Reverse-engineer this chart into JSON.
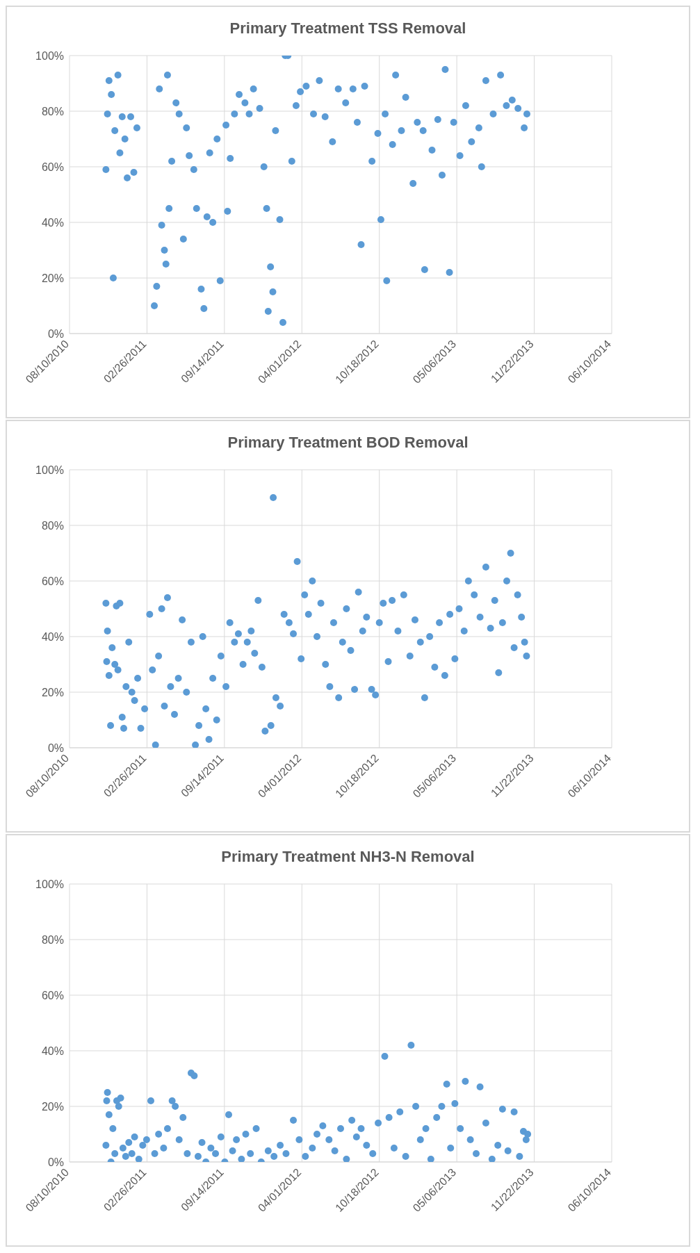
{
  "chart_data": [
    {
      "type": "scatter",
      "title": "Primary Treatment TSS Removal",
      "color": "#5b9bd5",
      "marker": "circle",
      "grid": true,
      "xlim": [
        "2010-08-10",
        "2014-06-10"
      ],
      "xticks": [
        {
          "value": "2010-08-10",
          "label": "08/10/2010"
        },
        {
          "value": "2011-02-26",
          "label": "02/26/2011"
        },
        {
          "value": "2011-09-14",
          "label": "09/14/2011"
        },
        {
          "value": "2012-04-01",
          "label": "04/01/2012"
        },
        {
          "value": "2012-10-18",
          "label": "10/18/2012"
        },
        {
          "value": "2013-05-06",
          "label": "05/06/2013"
        },
        {
          "value": "2013-11-22",
          "label": "11/22/2013"
        },
        {
          "value": "2014-06-10",
          "label": "06/10/2014"
        }
      ],
      "ylim": [
        0,
        100
      ],
      "yticks": [
        {
          "value": 0,
          "label": "0%"
        },
        {
          "value": 20,
          "label": "20%"
        },
        {
          "value": 40,
          "label": "40%"
        },
        {
          "value": 60,
          "label": "60%"
        },
        {
          "value": 80,
          "label": "80%"
        },
        {
          "value": 100,
          "label": "100%"
        }
      ],
      "x": [
        "2010-11-12",
        "2010-11-16",
        "2010-11-20",
        "2010-11-26",
        "2010-12-01",
        "2010-12-05",
        "2010-12-13",
        "2010-12-18",
        "2010-12-24",
        "2010-12-31",
        "2011-01-06",
        "2011-01-15",
        "2011-01-23",
        "2011-01-31",
        "2011-03-17",
        "2011-03-23",
        "2011-03-30",
        "2011-04-05",
        "2011-04-12",
        "2011-04-16",
        "2011-04-20",
        "2011-04-24",
        "2011-05-01",
        "2011-05-12",
        "2011-05-20",
        "2011-05-31",
        "2011-06-08",
        "2011-06-15",
        "2011-06-27",
        "2011-07-04",
        "2011-07-16",
        "2011-07-23",
        "2011-07-31",
        "2011-08-07",
        "2011-08-15",
        "2011-08-26",
        "2011-09-03",
        "2011-09-18",
        "2011-09-22",
        "2011-09-29",
        "2011-10-10",
        "2011-10-22",
        "2011-11-06",
        "2011-11-17",
        "2011-11-28",
        "2011-12-14",
        "2011-12-25",
        "2012-01-01",
        "2012-01-05",
        "2012-01-11",
        "2012-01-17",
        "2012-01-24",
        "2012-02-04",
        "2012-02-12",
        "2012-02-18",
        "2012-02-25",
        "2012-03-06",
        "2012-03-17",
        "2012-03-28",
        "2012-04-12",
        "2012-05-01",
        "2012-05-16",
        "2012-05-31",
        "2012-06-19",
        "2012-07-04",
        "2012-07-23",
        "2012-08-11",
        "2012-08-22",
        "2012-09-01",
        "2012-09-10",
        "2012-09-29",
        "2012-10-14",
        "2012-10-22",
        "2012-11-02",
        "2012-11-06",
        "2012-11-21",
        "2012-11-29",
        "2012-12-14",
        "2012-12-25",
        "2013-01-13",
        "2013-01-24",
        "2013-02-08",
        "2013-02-12",
        "2013-03-03",
        "2013-03-18",
        "2013-03-29",
        "2013-04-06",
        "2013-04-17",
        "2013-04-28",
        "2013-05-14",
        "2013-05-29",
        "2013-06-13",
        "2013-07-02",
        "2013-07-09",
        "2013-07-20",
        "2013-08-08",
        "2013-08-27",
        "2013-09-11",
        "2013-09-26",
        "2013-10-11",
        "2013-10-27",
        "2013-11-03"
      ],
      "values": [
        59,
        79,
        91,
        86,
        20,
        73,
        93,
        65,
        78,
        70,
        56,
        78,
        58,
        74,
        10,
        17,
        88,
        39,
        30,
        25,
        93,
        45,
        62,
        83,
        79,
        34,
        74,
        64,
        59,
        45,
        16,
        9,
        42,
        65,
        40,
        70,
        19,
        75,
        44,
        63,
        79,
        86,
        83,
        79,
        88,
        81,
        60,
        45,
        8,
        24,
        15,
        73,
        41,
        4,
        100,
        100,
        62,
        82,
        87,
        89,
        79,
        91,
        78,
        69,
        88,
        83,
        88,
        76,
        32,
        89,
        62,
        72,
        41,
        79,
        19,
        68,
        93,
        73,
        85,
        54,
        76,
        73,
        23,
        66,
        77,
        57,
        95,
        22,
        76,
        64,
        82,
        69,
        74,
        60,
        91,
        79,
        93,
        82,
        84,
        81,
        74,
        79
      ]
    },
    {
      "type": "scatter",
      "title": "Primary Treatment BOD Removal",
      "color": "#5b9bd5",
      "marker": "circle",
      "grid": true,
      "xlim": [
        "2010-08-10",
        "2014-06-10"
      ],
      "xticks": [
        {
          "value": "2010-08-10",
          "label": "08/10/2010"
        },
        {
          "value": "2011-02-26",
          "label": "02/26/2011"
        },
        {
          "value": "2011-09-14",
          "label": "09/14/2011"
        },
        {
          "value": "2012-04-01",
          "label": "04/01/2012"
        },
        {
          "value": "2012-10-18",
          "label": "10/18/2012"
        },
        {
          "value": "2013-05-06",
          "label": "05/06/2013"
        },
        {
          "value": "2013-11-22",
          "label": "11/22/2013"
        },
        {
          "value": "2014-06-10",
          "label": "06/10/2014"
        }
      ],
      "ylim": [
        0,
        100
      ],
      "yticks": [
        {
          "value": 0,
          "label": "0%"
        },
        {
          "value": 20,
          "label": "20%"
        },
        {
          "value": 40,
          "label": "40%"
        },
        {
          "value": 60,
          "label": "60%"
        },
        {
          "value": 80,
          "label": "80%"
        },
        {
          "value": 100,
          "label": "100%"
        }
      ],
      "x": [
        "2010-11-12",
        "2010-11-14",
        "2010-11-16",
        "2010-11-20",
        "2010-11-24",
        "2010-11-28",
        "2010-12-05",
        "2010-12-09",
        "2010-12-13",
        "2010-12-18",
        "2010-12-24",
        "2010-12-28",
        "2011-01-03",
        "2011-01-10",
        "2011-01-18",
        "2011-01-25",
        "2011-02-02",
        "2011-02-10",
        "2011-02-20",
        "2011-03-05",
        "2011-03-12",
        "2011-03-20",
        "2011-03-28",
        "2011-04-05",
        "2011-04-12",
        "2011-04-20",
        "2011-04-28",
        "2011-05-08",
        "2011-05-18",
        "2011-05-28",
        "2011-06-08",
        "2011-06-20",
        "2011-07-01",
        "2011-07-10",
        "2011-07-20",
        "2011-07-28",
        "2011-08-05",
        "2011-08-15",
        "2011-08-25",
        "2011-09-05",
        "2011-09-18",
        "2011-09-28",
        "2011-10-10",
        "2011-10-20",
        "2011-11-01",
        "2011-11-12",
        "2011-11-22",
        "2011-12-01",
        "2011-12-10",
        "2011-12-20",
        "2011-12-28",
        "2012-01-12",
        "2012-01-18",
        "2012-01-25",
        "2012-02-05",
        "2012-02-15",
        "2012-02-28",
        "2012-03-10",
        "2012-03-20",
        "2012-03-30",
        "2012-04-08",
        "2012-04-18",
        "2012-04-28",
        "2012-05-10",
        "2012-05-20",
        "2012-06-01",
        "2012-06-12",
        "2012-06-22",
        "2012-07-05",
        "2012-07-15",
        "2012-07-25",
        "2012-08-05",
        "2012-08-15",
        "2012-08-25",
        "2012-09-05",
        "2012-09-15",
        "2012-09-28",
        "2012-10-08",
        "2012-10-18",
        "2012-10-28",
        "2012-11-10",
        "2012-11-20",
        "2012-12-05",
        "2012-12-20",
        "2013-01-05",
        "2013-01-18",
        "2013-02-01",
        "2013-02-12",
        "2013-02-25",
        "2013-03-10",
        "2013-03-22",
        "2013-04-05",
        "2013-04-18",
        "2013-05-01",
        "2013-05-12",
        "2013-05-25",
        "2013-06-05",
        "2013-06-20",
        "2013-07-05",
        "2013-07-20",
        "2013-08-01",
        "2013-08-12",
        "2013-08-22",
        "2013-09-01",
        "2013-09-12",
        "2013-09-22",
        "2013-10-01",
        "2013-10-10",
        "2013-10-20",
        "2013-10-28",
        "2013-11-02"
      ],
      "values": [
        52,
        31,
        42,
        26,
        8,
        36,
        30,
        51,
        28,
        52,
        11,
        7,
        22,
        38,
        20,
        17,
        25,
        7,
        14,
        48,
        28,
        1,
        33,
        50,
        15,
        54,
        22,
        12,
        25,
        46,
        20,
        38,
        1,
        8,
        40,
        14,
        3,
        25,
        10,
        33,
        22,
        45,
        38,
        41,
        30,
        38,
        42,
        34,
        53,
        29,
        6,
        8,
        90,
        18,
        15,
        48,
        45,
        41,
        67,
        32,
        55,
        48,
        60,
        40,
        52,
        30,
        22,
        45,
        18,
        38,
        50,
        35,
        21,
        56,
        42,
        47,
        21,
        19,
        45,
        52,
        31,
        53,
        42,
        55,
        33,
        46,
        38,
        18,
        40,
        29,
        45,
        26,
        48,
        32,
        50,
        42,
        60,
        55,
        47,
        65,
        43,
        53,
        27,
        45,
        60,
        70,
        36,
        55,
        47,
        38,
        33
      ]
    },
    {
      "type": "scatter",
      "title": "Primary Treatment NH3-N Removal",
      "color": "#5b9bd5",
      "marker": "circle",
      "grid": true,
      "xlim": [
        "2010-08-10",
        "2014-06-10"
      ],
      "xticks": [
        {
          "value": "2010-08-10",
          "label": "08/10/2010"
        },
        {
          "value": "2011-02-26",
          "label": "02/26/2011"
        },
        {
          "value": "2011-09-14",
          "label": "09/14/2011"
        },
        {
          "value": "2012-04-01",
          "label": "04/01/2012"
        },
        {
          "value": "2012-10-18",
          "label": "10/18/2012"
        },
        {
          "value": "2013-05-06",
          "label": "05/06/2013"
        },
        {
          "value": "2013-11-22",
          "label": "11/22/2013"
        },
        {
          "value": "2014-06-10",
          "label": "06/10/2014"
        }
      ],
      "ylim": [
        0,
        100
      ],
      "yticks": [
        {
          "value": 0,
          "label": "0%"
        },
        {
          "value": 20,
          "label": "20%"
        },
        {
          "value": 40,
          "label": "40%"
        },
        {
          "value": 60,
          "label": "60%"
        },
        {
          "value": 80,
          "label": "80%"
        },
        {
          "value": 100,
          "label": "100%"
        }
      ],
      "x": [
        "2010-11-12",
        "2010-11-14",
        "2010-11-16",
        "2010-11-20",
        "2010-11-25",
        "2010-11-30",
        "2010-12-05",
        "2010-12-10",
        "2010-12-15",
        "2010-12-20",
        "2010-12-26",
        "2011-01-02",
        "2011-01-10",
        "2011-01-18",
        "2011-01-25",
        "2011-02-05",
        "2011-02-15",
        "2011-02-25",
        "2011-03-08",
        "2011-03-18",
        "2011-03-28",
        "2011-04-10",
        "2011-04-20",
        "2011-05-02",
        "2011-05-10",
        "2011-05-20",
        "2011-05-30",
        "2011-06-10",
        "2011-06-20",
        "2011-06-28",
        "2011-07-08",
        "2011-07-18",
        "2011-07-28",
        "2011-08-10",
        "2011-08-22",
        "2011-09-05",
        "2011-09-15",
        "2011-09-25",
        "2011-10-05",
        "2011-10-15",
        "2011-10-28",
        "2011-11-08",
        "2011-11-20",
        "2011-12-05",
        "2011-12-18",
        "2012-01-05",
        "2012-01-20",
        "2012-02-05",
        "2012-02-20",
        "2012-03-10",
        "2012-03-25",
        "2012-04-10",
        "2012-04-28",
        "2012-05-10",
        "2012-05-25",
        "2012-06-10",
        "2012-06-25",
        "2012-07-10",
        "2012-07-25",
        "2012-08-08",
        "2012-08-20",
        "2012-09-01",
        "2012-09-15",
        "2012-10-01",
        "2012-10-15",
        "2012-11-01",
        "2012-11-12",
        "2012-11-25",
        "2012-12-10",
        "2012-12-25",
        "2013-01-08",
        "2013-01-20",
        "2013-02-01",
        "2013-02-15",
        "2013-02-28",
        "2013-03-15",
        "2013-03-28",
        "2013-04-10",
        "2013-04-20",
        "2013-05-01",
        "2013-05-15",
        "2013-05-28",
        "2013-06-10",
        "2013-06-25",
        "2013-07-05",
        "2013-07-20",
        "2013-08-05",
        "2013-08-20",
        "2013-09-01",
        "2013-09-15",
        "2013-10-01",
        "2013-10-15",
        "2013-10-25",
        "2013-11-01",
        "2013-11-05"
      ],
      "values": [
        6,
        22,
        25,
        17,
        0,
        12,
        3,
        22,
        20,
        23,
        5,
        2,
        7,
        3,
        9,
        1,
        6,
        8,
        22,
        3,
        10,
        5,
        12,
        22,
        20,
        8,
        16,
        3,
        32,
        31,
        2,
        7,
        0,
        5,
        3,
        9,
        0,
        17,
        4,
        8,
        1,
        10,
        3,
        12,
        0,
        4,
        2,
        6,
        3,
        15,
        8,
        2,
        5,
        10,
        13,
        8,
        4,
        12,
        1,
        15,
        9,
        12,
        6,
        3,
        14,
        38,
        16,
        5,
        18,
        2,
        42,
        20,
        8,
        12,
        1,
        16,
        20,
        28,
        5,
        21,
        12,
        29,
        8,
        3,
        27,
        14,
        1,
        6,
        19,
        4,
        18,
        2,
        11,
        8,
        10
      ]
    }
  ]
}
